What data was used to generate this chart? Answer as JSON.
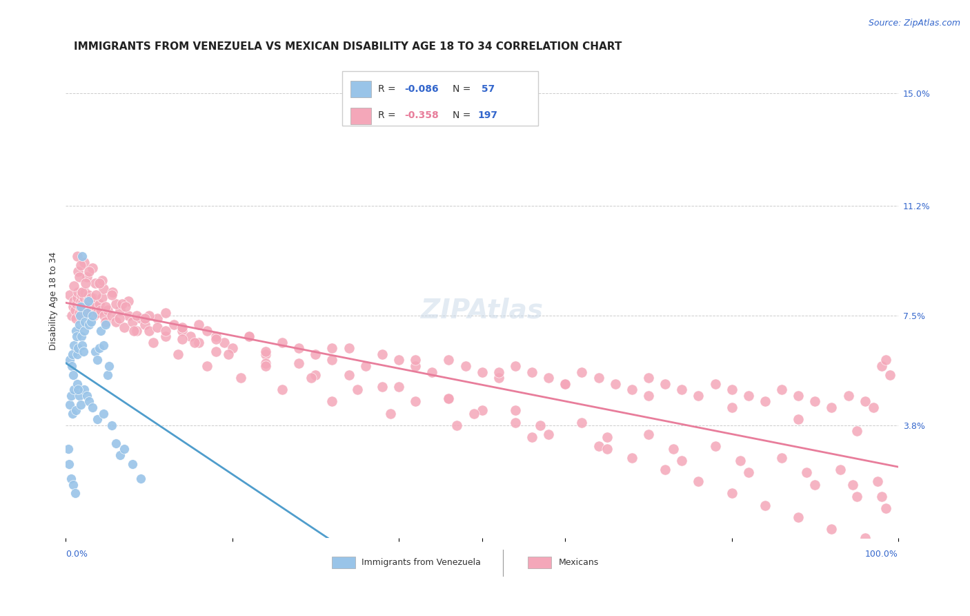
{
  "title": "IMMIGRANTS FROM VENEZUELA VS MEXICAN DISABILITY AGE 18 TO 34 CORRELATION CHART",
  "source": "Source: ZipAtlas.com",
  "ylabel": "Disability Age 18 to 34",
  "right_yticks": [
    0.038,
    0.075,
    0.112,
    0.15
  ],
  "right_yticklabels": [
    "3.8%",
    "7.5%",
    "11.2%",
    "15.0%"
  ],
  "legend_label_blue": "Immigrants from Venezuela",
  "legend_label_pink": "Mexicans",
  "blue_color": "#99c4e8",
  "pink_color": "#f4a7b9",
  "blue_line_color": "#4f9dcc",
  "pink_line_color": "#e87d9b",
  "blue_scatter_x": [
    0.005,
    0.007,
    0.008,
    0.009,
    0.01,
    0.012,
    0.013,
    0.014,
    0.015,
    0.016,
    0.017,
    0.018,
    0.019,
    0.02,
    0.021,
    0.022,
    0.023,
    0.025,
    0.027,
    0.028,
    0.03,
    0.032,
    0.035,
    0.038,
    0.04,
    0.042,
    0.045,
    0.048,
    0.05,
    0.052,
    0.005,
    0.006,
    0.008,
    0.01,
    0.012,
    0.014,
    0.016,
    0.018,
    0.022,
    0.025,
    0.028,
    0.032,
    0.038,
    0.045,
    0.055,
    0.06,
    0.065,
    0.07,
    0.08,
    0.09,
    0.003,
    0.004,
    0.006,
    0.009,
    0.011,
    0.015,
    0.02
  ],
  "blue_scatter_y": [
    0.06,
    0.058,
    0.062,
    0.055,
    0.065,
    0.07,
    0.068,
    0.062,
    0.064,
    0.072,
    0.075,
    0.078,
    0.068,
    0.065,
    0.063,
    0.07,
    0.073,
    0.076,
    0.08,
    0.072,
    0.073,
    0.075,
    0.063,
    0.06,
    0.064,
    0.07,
    0.065,
    0.072,
    0.055,
    0.058,
    0.045,
    0.048,
    0.042,
    0.05,
    0.043,
    0.052,
    0.048,
    0.045,
    0.05,
    0.048,
    0.046,
    0.044,
    0.04,
    0.042,
    0.038,
    0.032,
    0.028,
    0.03,
    0.025,
    0.02,
    0.03,
    0.025,
    0.02,
    0.018,
    0.015,
    0.05,
    0.095
  ],
  "pink_scatter_x": [
    0.005,
    0.007,
    0.009,
    0.01,
    0.011,
    0.012,
    0.013,
    0.014,
    0.015,
    0.016,
    0.017,
    0.018,
    0.019,
    0.02,
    0.021,
    0.022,
    0.023,
    0.024,
    0.025,
    0.026,
    0.027,
    0.028,
    0.03,
    0.032,
    0.034,
    0.036,
    0.038,
    0.04,
    0.042,
    0.044,
    0.046,
    0.048,
    0.05,
    0.055,
    0.06,
    0.065,
    0.07,
    0.075,
    0.08,
    0.085,
    0.09,
    0.095,
    0.1,
    0.11,
    0.12,
    0.13,
    0.14,
    0.15,
    0.16,
    0.17,
    0.18,
    0.19,
    0.2,
    0.22,
    0.24,
    0.26,
    0.28,
    0.3,
    0.32,
    0.34,
    0.36,
    0.38,
    0.4,
    0.42,
    0.44,
    0.46,
    0.48,
    0.5,
    0.52,
    0.54,
    0.56,
    0.58,
    0.6,
    0.62,
    0.64,
    0.66,
    0.68,
    0.7,
    0.72,
    0.74,
    0.76,
    0.78,
    0.8,
    0.82,
    0.84,
    0.86,
    0.88,
    0.9,
    0.92,
    0.94,
    0.96,
    0.97,
    0.98,
    0.985,
    0.99,
    0.015,
    0.025,
    0.035,
    0.045,
    0.075,
    0.12,
    0.16,
    0.22,
    0.32,
    0.42,
    0.52,
    0.6,
    0.7,
    0.8,
    0.88,
    0.95,
    0.01,
    0.02,
    0.03,
    0.06,
    0.1,
    0.14,
    0.18,
    0.24,
    0.28,
    0.34,
    0.4,
    0.46,
    0.5,
    0.54,
    0.58,
    0.64,
    0.68,
    0.72,
    0.76,
    0.8,
    0.84,
    0.88,
    0.92,
    0.96,
    0.014,
    0.022,
    0.032,
    0.044,
    0.056,
    0.068,
    0.085,
    0.11,
    0.14,
    0.18,
    0.24,
    0.3,
    0.38,
    0.46,
    0.54,
    0.62,
    0.7,
    0.78,
    0.86,
    0.93,
    0.975,
    0.016,
    0.024,
    0.036,
    0.048,
    0.064,
    0.082,
    0.105,
    0.135,
    0.17,
    0.21,
    0.26,
    0.32,
    0.39,
    0.47,
    0.56,
    0.65,
    0.74,
    0.82,
    0.9,
    0.95,
    0.985,
    0.018,
    0.028,
    0.04,
    0.055,
    0.072,
    0.095,
    0.12,
    0.155,
    0.195,
    0.24,
    0.295,
    0.35,
    0.42,
    0.49,
    0.57,
    0.65,
    0.73,
    0.81,
    0.89,
    0.945,
    0.98
  ],
  "pink_scatter_y": [
    0.082,
    0.075,
    0.078,
    0.08,
    0.077,
    0.074,
    0.079,
    0.081,
    0.083,
    0.076,
    0.078,
    0.08,
    0.082,
    0.079,
    0.077,
    0.081,
    0.083,
    0.076,
    0.078,
    0.08,
    0.082,
    0.079,
    0.077,
    0.081,
    0.075,
    0.078,
    0.076,
    0.079,
    0.077,
    0.081,
    0.075,
    0.073,
    0.077,
    0.075,
    0.073,
    0.077,
    0.071,
    0.075,
    0.073,
    0.07,
    0.074,
    0.072,
    0.07,
    0.074,
    0.068,
    0.072,
    0.07,
    0.068,
    0.066,
    0.07,
    0.068,
    0.066,
    0.064,
    0.068,
    0.062,
    0.066,
    0.064,
    0.062,
    0.06,
    0.064,
    0.058,
    0.062,
    0.06,
    0.058,
    0.056,
    0.06,
    0.058,
    0.056,
    0.054,
    0.058,
    0.056,
    0.054,
    0.052,
    0.056,
    0.054,
    0.052,
    0.05,
    0.054,
    0.052,
    0.05,
    0.048,
    0.052,
    0.05,
    0.048,
    0.046,
    0.05,
    0.048,
    0.046,
    0.044,
    0.048,
    0.046,
    0.044,
    0.058,
    0.06,
    0.055,
    0.09,
    0.088,
    0.086,
    0.084,
    0.08,
    0.076,
    0.072,
    0.068,
    0.064,
    0.06,
    0.056,
    0.052,
    0.048,
    0.044,
    0.04,
    0.036,
    0.085,
    0.083,
    0.081,
    0.079,
    0.075,
    0.071,
    0.067,
    0.063,
    0.059,
    0.055,
    0.051,
    0.047,
    0.043,
    0.039,
    0.035,
    0.031,
    0.027,
    0.023,
    0.019,
    0.015,
    0.011,
    0.007,
    0.003,
    0.0,
    0.095,
    0.093,
    0.091,
    0.087,
    0.083,
    0.079,
    0.075,
    0.071,
    0.067,
    0.063,
    0.059,
    0.055,
    0.051,
    0.047,
    0.043,
    0.039,
    0.035,
    0.031,
    0.027,
    0.023,
    0.019,
    0.088,
    0.086,
    0.082,
    0.078,
    0.074,
    0.07,
    0.066,
    0.062,
    0.058,
    0.054,
    0.05,
    0.046,
    0.042,
    0.038,
    0.034,
    0.03,
    0.026,
    0.022,
    0.018,
    0.014,
    0.01,
    0.092,
    0.09,
    0.086,
    0.082,
    0.078,
    0.074,
    0.07,
    0.066,
    0.062,
    0.058,
    0.054,
    0.05,
    0.046,
    0.042,
    0.038,
    0.034,
    0.03,
    0.026,
    0.022,
    0.018,
    0.014
  ],
  "xlim": [
    0.0,
    1.0
  ],
  "ylim": [
    0.0,
    0.16
  ],
  "blue_trend_solid_end": 0.45,
  "title_fontsize": 11,
  "source_fontsize": 9,
  "axis_label_fontsize": 9,
  "tick_fontsize": 9,
  "legend_fontsize": 10,
  "watermark_fontsize": 28,
  "watermark_color": "#c8d8e8",
  "watermark_alpha": 0.5
}
